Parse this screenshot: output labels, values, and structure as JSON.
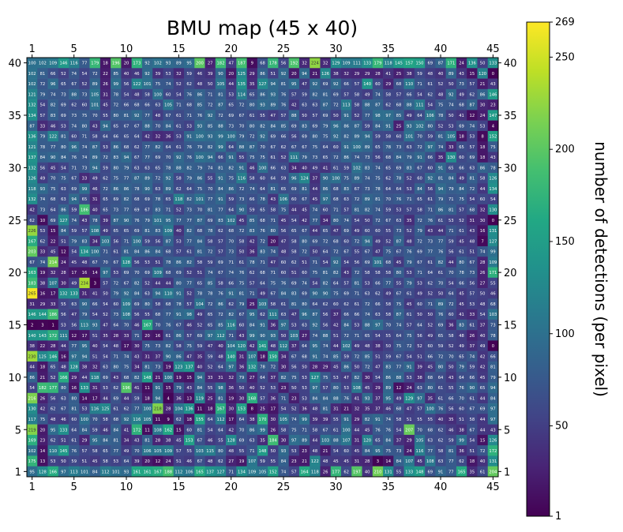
{
  "chart_data": {
    "type": "heatmap",
    "title": "BMU map (45 x 40)",
    "colorbar_label": "number of detections (per pixel)",
    "colormap": "viridis",
    "grid": {
      "cols": 45,
      "rows": 40
    },
    "x_ticks": [
      1,
      5,
      10,
      15,
      20,
      25,
      30,
      35,
      40,
      45
    ],
    "y_ticks": [
      1,
      5,
      10,
      15,
      20,
      25,
      30,
      35,
      40
    ],
    "colorbar": {
      "min": 1,
      "max": 269,
      "ticks": [
        1,
        50,
        100,
        150,
        200,
        250,
        269
      ]
    },
    "rows_top_to_bottom": [
      "100 102 109 146 116 77 179 18 196 20 173 92 102 93 89 95 200 27 182 47 187 9 68 178 56 192 32 224 32 129 109 111 133 179 118 145 157 150 69 87 171 24 136 50 133",
      "102 81 66 52 74 54 72 22 85 40 46 92 39 53 32 59 46 39 90 20 125 29 86 51 92 20 94 21 126 38 32 29 29 28 41 25 38 59 48 40 89 43 15 120 0",
      "102 72 96 65 67 52 89 26 99 56 122 101 75 74 52 62 48 50 105 44 135 35 127 94 81 95 47 92 69 92 66 57 140 60 29 68 110 71 61 52 50 73 57 21 43",
      "121 79 74 73 88 73 105 31 78 54 48 58 100 60 54 76 86 71 81 53 114 65 86 93 76 57 59 82 81 69 57 58 49 74 58 57 66 54 62 48 92 49 62 86 146",
      "132 54 82 69 62 60 101 45 72 66 68 66 63 105 71 68 85 72 87 65 72 80 93 89 76 42 63 63 87 72 113 58 88 87 62 68 88 111 54 75 74 68 87 30 23",
      "134 57 83 69 73 75 70 55 80 81 92 77 48 67 61 71 76 92 72 69 67 61 55 47 57 88 50 57 69 50 91 52 77 98 97 85 49 64 106 78 50 41 12 24 147",
      "87 33 46 53 74 80 43 94 65 67 67 88 70 84 61 53 93 85 88 73 70 80 82 84 85 69 83 69 79 96 86 87 59 84 91 25 93 102 80 52 53 69 74 53 4",
      "136 79 122 81 60 71 58 64 66 65 64 42 32 36 53 91 100 93 99 100 79 72 92 69 66 56 69 80 75 92 82 89 94 59 58 60 101 70 59 81 105 18 53 8 152",
      "121 78 77 80 96 74 87 53 86 68 62 77 82 64 61 76 79 82 99 64 88 87 70 67 62 67 67 75 64 60 91 100 89 65 78 73 63 72 97 74 33 65 57 18 75",
      "137 84 90 84 76 74 89 72 83 94 67 77 69 70 92 76 100 94 66 91 55 75 75 61 52 111 79 73 65 72 86 74 73 56 68 84 79 91 66 35 130 60 69 18 43",
      "132 56 45 54 71 73 94 59 80 79 63 63 65 78 88 82 79 74 81 82 91 46 100 66 63 34 40 49 41 61 59 102 83 74 65 69 83 67 60 91 65 66 63 86 78",
      "126 49 70 75 67 33 49 62 75 77 87 89 72 92 58 79 86 55 91 75 116 58 60 64 59 96 124 37 90 100 75 89 74 75 62 78 52 60 92 81 84 49 81 58 126",
      "118 93 75 63 69 99 46 72 86 86 78 90 63 89 62 64 75 70 84 86 72 74 64 81 65 69 81 44 86 68 83 67 73 78 64 64 53 84 56 94 79 84 72 44 134",
      "132 74 68 63 94 65 31 65 69 82 68 69 78 65 118 82 101 77 91 59 73 66 78 43 106 60 67 45 97 68 63 72 89 81 70 76 71 65 61 79 71 75 54 60 54",
      "42 73 64 86 59 186 40 65 73 77 69 67 83 71 52 73 70 81 77 64 90 59 65 58 75 44 45 74 60 71 57 81 82 74 59 53 57 58 71 86 81 57 68 32 130",
      "62 10 69 127 74 43 78 39 87 90 76 79 101 95 77 77 87 69 83 102 45 85 68 71 45 54 42 77 34 80 74 54 50 72 67 63 35 72 76 61 53 52 31 30 0",
      "226 53 15 84 59 57 108 49 65 65 69 81 83 109 40 82 68 78 62 68 72 83 76 80 56 65 67 44 65 47 69 49 60 60 55 73 52 79 43 44 71 61 43 16 131",
      "167 62 22 51 79 83 34 103 56 71 100 59 56 87 53 77 84 58 57 70 58 42 72 20 47 58 80 69 72 68 60 72 94 49 52 87 48 72 73 77 59 45 48 7 127",
      "203 33 45 12 54 134 100 71 61 81 84 86 84 68 57 61 81 72 57 73 50 36 83 74 48 58 72 50 64 72 67 55 67 47 75 67 76 69 77 76 56 61 51 74 99",
      "67 74 214 24 45 48 67 70 67 128 56 53 51 78 86 82 58 59 69 71 61 78 71 47 60 62 51 71 54 92 54 56 69 101 68 45 79 67 61 82 44 80 67 28 109",
      "163 19 32 28 17 16 14 97 53 69 70 69 109 68 69 52 51 74 67 74 76 62 68 71 60 51 60 75 81 82 43 72 58 58 58 80 53 71 64 61 70 78 73 26 171",
      "183 38 107 30 49 234 3 57 72 67 82 52 44 44 80 77 65 85 58 66 75 57 64 75 76 69 74 54 82 64 57 81 53 66 77 55 79 53 62 70 54 66 56 27 55",
      "265 16 17 132 133 31 41 50 79 92 84 63 94 110 91 52 78 78 76 91 81 71 49 67 84 83 69 90 90 75 69 71 63 62 49 67 61 49 52 50 64 45 57 50 46",
      "31 29 33 55 63 90 66 54 60 109 69 80 58 68 78 57 104 72 86 62 79 25 103 58 61 81 80 64 62 60 62 61 72 66 58 75 45 60 71 89 72 45 53 48 68",
      "146 144 186 56 47 79 54 52 73 108 56 55 68 77 91 98 49 65 72 82 67 95 62 111 63 47 96 87 56 37 66 66 74 63 58 87 61 50 50 76 60 41 33 54 103",
      "2 3 1 53 56 113 93 47 64 70 46 167 70 76 67 46 52 65 85 116 60 84 91 36 97 53 63 92 56 42 84 53 88 97 70 74 57 64 52 69 36 83 61 37 73",
      "140 143 172 111 12 17 51 35 28 33 71 20 16 61 86 57 69 97 112 71 43 99 90 93 50 103 27 74 88 51 72 71 65 54 55 64 75 56 49 65 58 48 26 40 78",
      "38 22 28 44 77 95 40 54 48 17 30 75 73 82 58 75 59 47 40 104 120 42 141 48 112 37 64 95 74 44 102 49 48 38 50 75 72 52 60 59 52 49 37 49 0",
      "230 125 146 16 97 94 51 54 71 74 43 31 37 90 86 47 35 59 48 140 31 107 18 150 34 67 68 91 74 85 59 72 85 51 59 67 54 51 66 72 70 65 74 42 66",
      "44 18 65 48 128 38 32 63 80 75 34 81 73 19 123 137 40 52 64 97 36 132 78 72 30 56 50 28 29 45 86 50 72 47 83 77 91 39 45 80 50 79 59 42 81",
      "86 21 52 166 29 44 118 69 43 68 82 148 21 100 19 15 94 33 31 32 79 27 64 37 82 75 53 127 75 53 47 82 30 54 86 88 53 38 68 64 43 64 66 45 79",
      "54 182 177 80 16 133 31 53 62 196 41 11 91 15 79 43 84 55 98 36 50 40 52 53 23 50 53 97 57 80 53 108 45 29 89 12 24 63 80 61 55 76 90 65 94",
      "216 26 56 63 80 14 17 44 69 44 59 18 94 4 36 13 119 25 81 19 30 168 57 36 71 23 53 84 84 88 76 41 93 37 95 49 129 97 35 61 66 70 61 44 84",
      "130 42 62 67 81 53 116 125 61 62 77 100 218 28 104 136 11 18 167 30 153 8 25 17 54 52 36 48 81 31 21 32 35 37 46 68 47 57 100 76 56 60 67 69 97",
      "117 75 48 46 60 100 70 58 68 92 116 105 11 9 62 18 155 64 112 17 64 38 170 30 105 74 99 39 39 55 91 29 82 91 74 58 51 55 55 40 35 51 58 44 97",
      "219 20 95 133 64 84 59 46 84 41 172 11 108 162 15 60 81 54 64 42 70 86 99 26 58 75 71 58 67 61 100 44 45 76 76 54 207 70 68 62 46 38 67 44 43",
      "169 23 62 51 61 29 95 84 81 34 43 81 28 38 45 153 67 46 55 128 69 63 35 184 30 97 89 44 103 88 107 31 120 65 84 37 29 105 63 62 59 99 54 15 126",
      "102 14 110 145 76 57 58 65 77 49 70 106 105 109 57 55 103 115 80 48 55 71 148 50 93 53 23 48 21 54 60 45 84 95 75 73 24 116 77 58 81 36 51 72 172",
      "175 13 53 50 59 51 45 58 53 64 39 20 12 24 51 46 67 48 62 27 19 107 59 55 84 23 21 122 48 45 45 31 28 3 14 84 107 45 108 63 77 62 18 40 131",
      "95 128 166 97 113 101 84 112 101 93 161 161 167 188 112 106 165 137 127 71 134 109 105 152 74 57 164 118 26 177 62 197 40 210 131 55 133 148 69 91 77 165 35 61 204"
    ]
  }
}
